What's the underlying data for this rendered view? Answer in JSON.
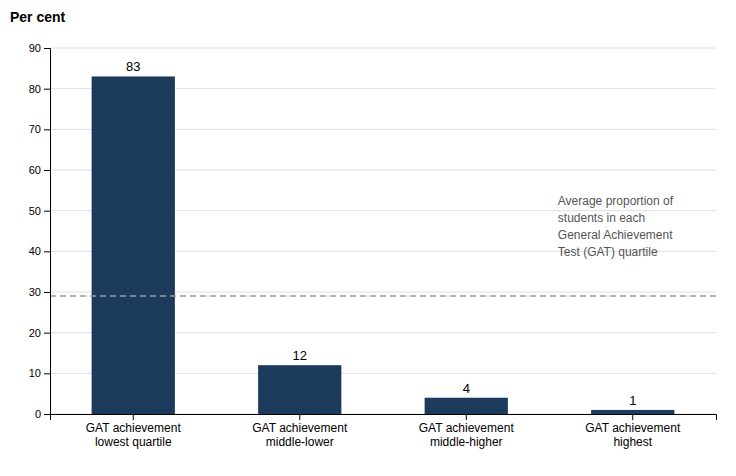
{
  "chart_data": {
    "type": "bar",
    "ylabel": "Per cent",
    "annotation": "Average proportion of\nstudents in each\nGeneral Achievement\nTest (GAT) quartile",
    "categories": [
      "GAT achievement\nlowest quartile",
      "GAT achievement\nmiddle-lower",
      "GAT achievement\nmiddle-higher",
      "GAT achievement\nhighest"
    ],
    "values": [
      83,
      12,
      4,
      1
    ],
    "color": "#1b3a5c",
    "reference_line": 29,
    "ylim": [
      0,
      90
    ],
    "yticks": [
      0,
      10,
      20,
      30,
      40,
      50,
      60,
      70,
      80,
      90
    ],
    "grid": true,
    "data_labels": true
  }
}
